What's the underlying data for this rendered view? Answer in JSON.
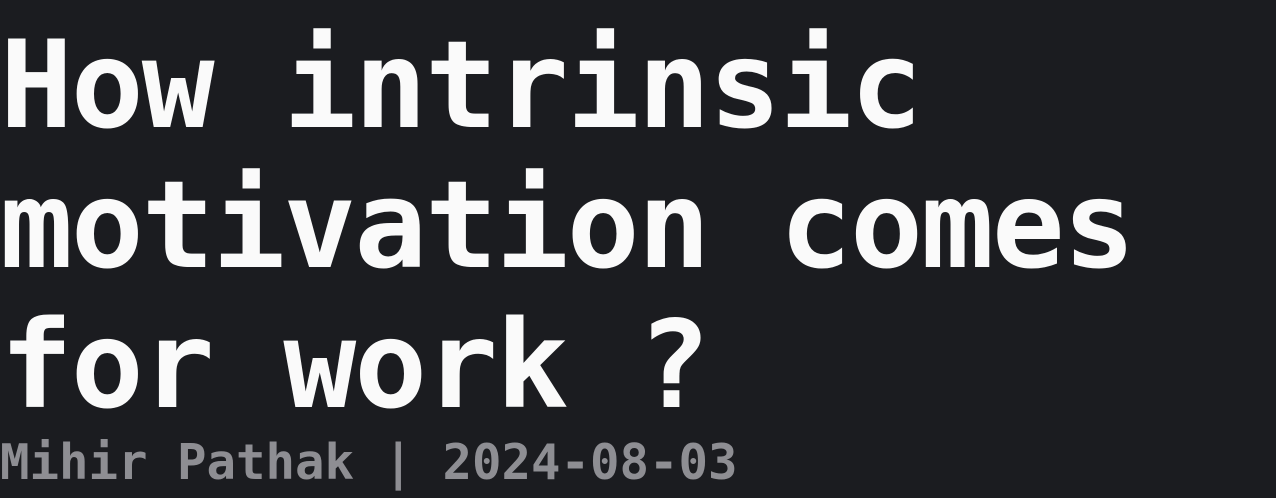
{
  "post": {
    "title_lines": [
      "How intrinsic",
      "motivation comes",
      "for work ?"
    ],
    "byline": "Mihir Pathak | 2024-08-03"
  },
  "colors": {
    "background": "#1b1c20",
    "title": "#fafafa",
    "byline": "#8e8e93"
  }
}
